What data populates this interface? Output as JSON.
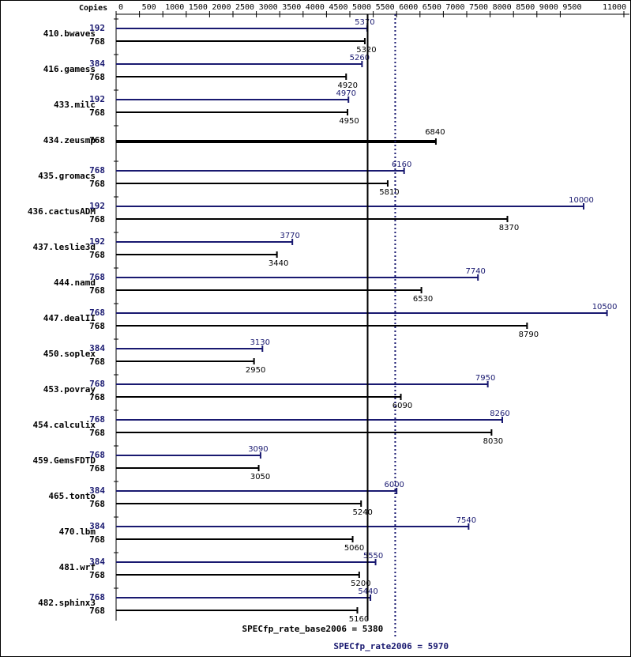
{
  "chart_data": {
    "type": "bar",
    "orientation": "horizontal",
    "axis_title": "Copies",
    "xlim": [
      0,
      11000
    ],
    "ticks": [
      "0",
      "500",
      "1000",
      "1500",
      "2000",
      "2500",
      "3000",
      "3500",
      "4000",
      "4500",
      "5000",
      "5500",
      "6000",
      "6500",
      "7000",
      "7500",
      "8000",
      "8500",
      "9000",
      "9500",
      "11000"
    ],
    "tick_values": [
      0,
      500,
      1000,
      1500,
      2000,
      2500,
      3000,
      3500,
      4000,
      4500,
      5000,
      5500,
      6000,
      6500,
      7000,
      7500,
      8000,
      8500,
      9000,
      9500,
      11000
    ],
    "colors": {
      "peak": "#191970",
      "base": "#000000"
    },
    "benchmarks": [
      {
        "name": "410.bwaves",
        "peak_copies": "192",
        "peak": 5370,
        "base_copies": "768",
        "base": 5320
      },
      {
        "name": "416.gamess",
        "peak_copies": "384",
        "peak": 5260,
        "base_copies": "768",
        "base": 4920
      },
      {
        "name": "433.milc",
        "peak_copies": "192",
        "peak": 4970,
        "base_copies": "768",
        "base": 4950
      },
      {
        "name": "434.zeusmp",
        "peak_copies": null,
        "peak": null,
        "base_copies": "768",
        "base": 6840
      },
      {
        "name": "435.gromacs",
        "peak_copies": "768",
        "peak": 6160,
        "base_copies": "768",
        "base": 5810
      },
      {
        "name": "436.cactusADM",
        "peak_copies": "192",
        "peak": 10000,
        "base_copies": "768",
        "base": 8370
      },
      {
        "name": "437.leslie3d",
        "peak_copies": "192",
        "peak": 3770,
        "base_copies": "768",
        "base": 3440
      },
      {
        "name": "444.namd",
        "peak_copies": "768",
        "peak": 7740,
        "base_copies": "768",
        "base": 6530
      },
      {
        "name": "447.dealII",
        "peak_copies": "768",
        "peak": 10500,
        "base_copies": "768",
        "base": 8790
      },
      {
        "name": "450.soplex",
        "peak_copies": "384",
        "peak": 3130,
        "base_copies": "768",
        "base": 2950
      },
      {
        "name": "453.povray",
        "peak_copies": "768",
        "peak": 7950,
        "base_copies": "768",
        "base": 6090
      },
      {
        "name": "454.calculix",
        "peak_copies": "768",
        "peak": 8260,
        "base_copies": "768",
        "base": 8030
      },
      {
        "name": "459.GemsFDTD",
        "peak_copies": "768",
        "peak": 3090,
        "base_copies": "768",
        "base": 3050
      },
      {
        "name": "465.tonto",
        "peak_copies": "384",
        "peak": 6000,
        "base_copies": "768",
        "base": 5240
      },
      {
        "name": "470.lbm",
        "peak_copies": "384",
        "peak": 7540,
        "base_copies": "768",
        "base": 5060
      },
      {
        "name": "481.wrf",
        "peak_copies": "384",
        "peak": 5550,
        "base_copies": "768",
        "base": 5200
      },
      {
        "name": "482.sphinx3",
        "peak_copies": "768",
        "peak": 5440,
        "base_copies": "768",
        "base": 5160
      }
    ],
    "base_mean": {
      "label": "SPECfp_rate_base2006 = 5380",
      "value": 5380
    },
    "peak_mean": {
      "label": "SPECfp_rate2006 = 5970",
      "value": 5970
    }
  }
}
